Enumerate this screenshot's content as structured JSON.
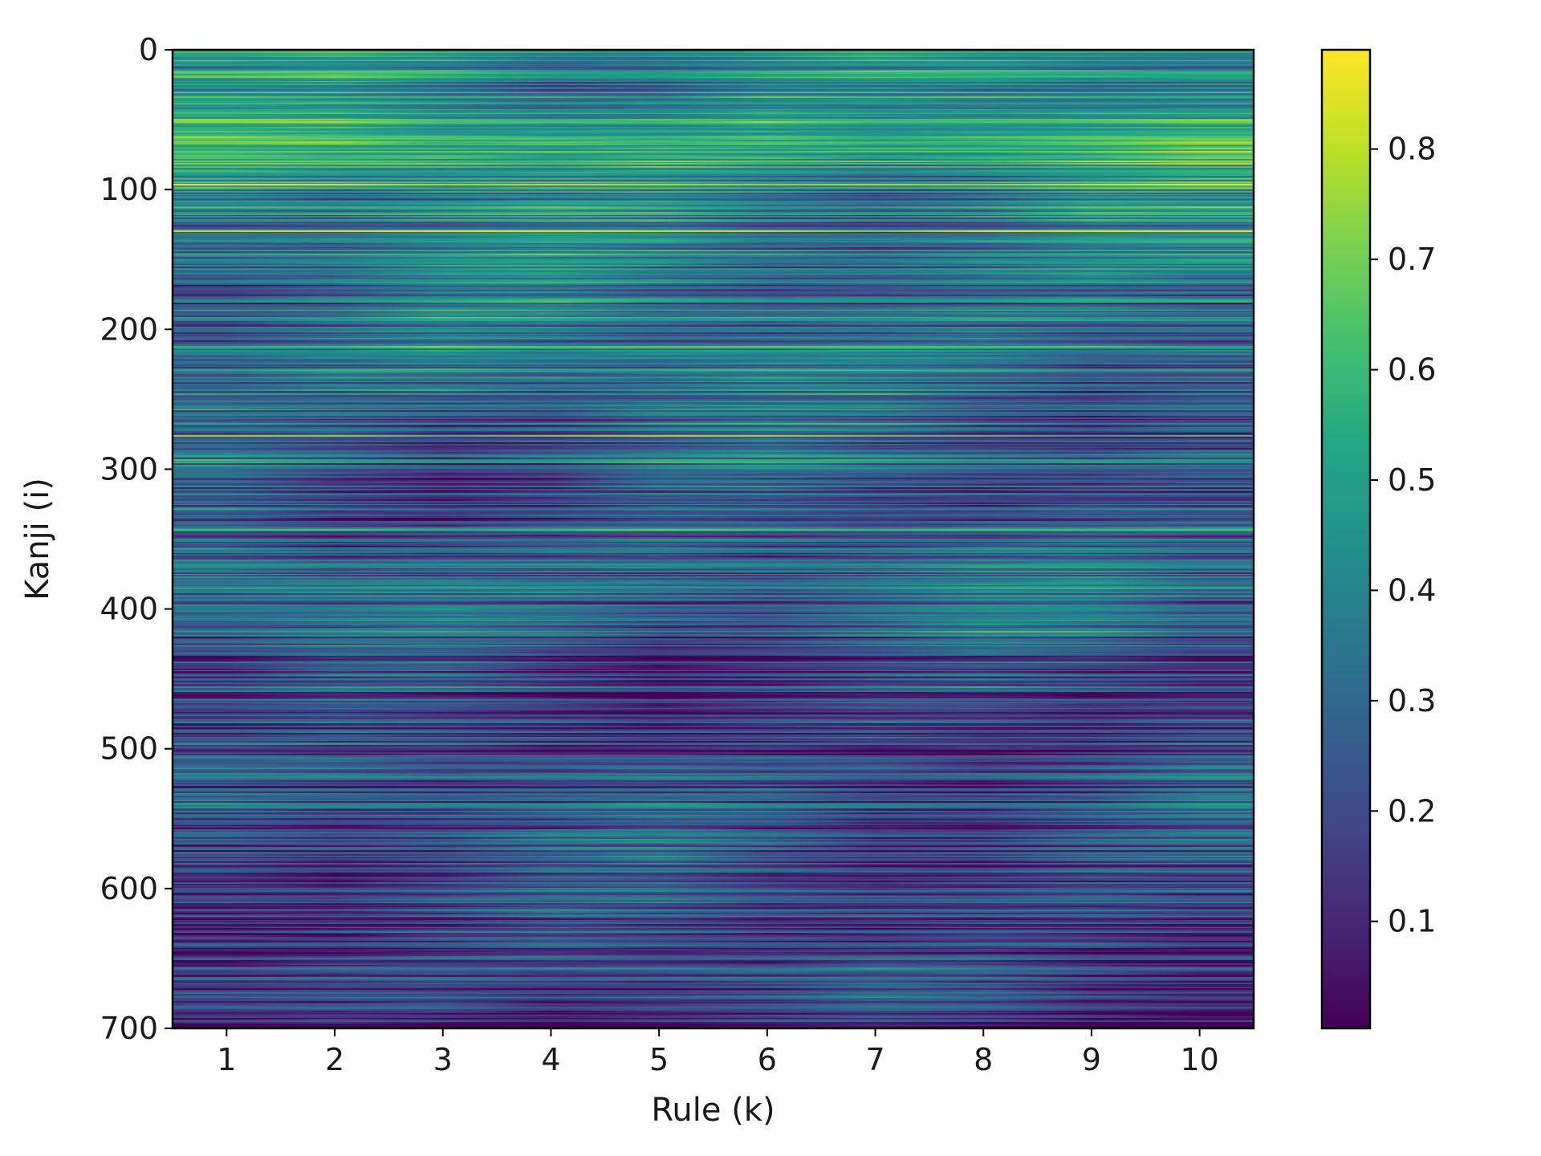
{
  "chart_data": {
    "type": "heatmap",
    "title": "",
    "xlabel": "Rule (k)",
    "ylabel": "Kanji (i)",
    "x_categories": [
      1,
      2,
      3,
      4,
      5,
      6,
      7,
      8,
      9,
      10
    ],
    "x_ticks": [
      "1",
      "2",
      "3",
      "4",
      "5",
      "6",
      "7",
      "8",
      "9",
      "10"
    ],
    "y_ticks": [
      "0",
      "100",
      "200",
      "300",
      "400",
      "500",
      "600",
      "700"
    ],
    "y_range": [
      0,
      700
    ],
    "y_inverted": true,
    "n_rows": 701,
    "n_cols": 10,
    "colormap": "viridis",
    "interpolation": "bilinear",
    "value_range": [
      0.003,
      0.89
    ],
    "colorbar": {
      "ticks": [
        "0.1",
        "0.2",
        "0.3",
        "0.4",
        "0.5",
        "0.6",
        "0.7",
        "0.8"
      ],
      "range": [
        0.003,
        0.89
      ]
    },
    "row_band_profile": [
      {
        "kanji": 0,
        "value": 0.4
      },
      {
        "kanji": 25,
        "value": 0.45
      },
      {
        "kanji": 70,
        "value": 0.52
      },
      {
        "kanji": 100,
        "value": 0.4
      },
      {
        "kanji": 150,
        "value": 0.36
      },
      {
        "kanji": 200,
        "value": 0.3
      },
      {
        "kanji": 240,
        "value": 0.36
      },
      {
        "kanji": 300,
        "value": 0.24
      },
      {
        "kanji": 370,
        "value": 0.28
      },
      {
        "kanji": 400,
        "value": 0.28
      },
      {
        "kanji": 450,
        "value": 0.16
      },
      {
        "kanji": 500,
        "value": 0.18
      },
      {
        "kanji": 550,
        "value": 0.24
      },
      {
        "kanji": 600,
        "value": 0.18
      },
      {
        "kanji": 650,
        "value": 0.2
      },
      {
        "kanji": 700,
        "value": 0.14
      }
    ]
  }
}
